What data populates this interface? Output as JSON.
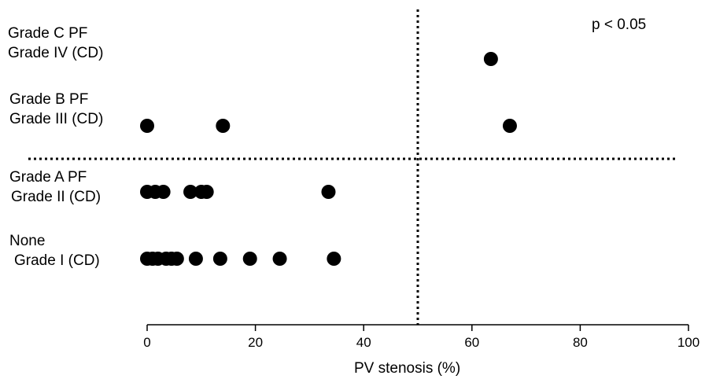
{
  "chart_data": {
    "type": "scatter",
    "title": "",
    "xlabel": "PV stenosis (%)",
    "ylabel": "",
    "xlim": [
      0,
      100
    ],
    "xticks": [
      0,
      20,
      40,
      60,
      80,
      100
    ],
    "grid": false,
    "annotation": "p < 0.05",
    "threshold_x": 50,
    "categories": [
      {
        "line1": "Grade C PF",
        "line2": "Grade IV (CD)"
      },
      {
        "line1": "Grade B PF",
        "line2": "Grade III (CD)"
      },
      {
        "line1": "Grade A PF",
        "line2": "Grade II (CD)"
      },
      {
        "line1": "None",
        "line2": "Grade I (CD)"
      }
    ],
    "points": [
      {
        "category": 0,
        "x": 63.5
      },
      {
        "category": 1,
        "x": 0
      },
      {
        "category": 1,
        "x": 14
      },
      {
        "category": 1,
        "x": 67
      },
      {
        "category": 2,
        "x": 0
      },
      {
        "category": 2,
        "x": 1.5
      },
      {
        "category": 2,
        "x": 3
      },
      {
        "category": 2,
        "x": 8
      },
      {
        "category": 2,
        "x": 10
      },
      {
        "category": 2,
        "x": 11
      },
      {
        "category": 2,
        "x": 33.5
      },
      {
        "category": 3,
        "x": 0
      },
      {
        "category": 3,
        "x": 1
      },
      {
        "category": 3,
        "x": 2
      },
      {
        "category": 3,
        "x": 3.5
      },
      {
        "category": 3,
        "x": 4.5
      },
      {
        "category": 3,
        "x": 5.5
      },
      {
        "category": 3,
        "x": 9
      },
      {
        "category": 3,
        "x": 13.5
      },
      {
        "category": 3,
        "x": 19
      },
      {
        "category": 3,
        "x": 24.5
      },
      {
        "category": 3,
        "x": 34.5
      }
    ]
  }
}
